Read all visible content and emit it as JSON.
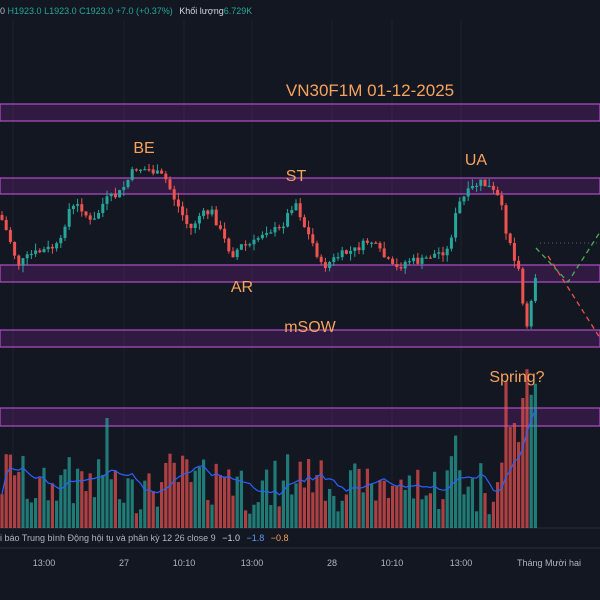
{
  "header": {
    "ohlc_prefix": "0",
    "high": "H1923.0",
    "low": "L1923.0",
    "close": "C1923.0",
    "change": "+7.0 (+0.37%)",
    "volume_label": "Khối lượng",
    "volume_value": "6.729K"
  },
  "oscillator": {
    "name": "i báo Trung bình Động hội tụ và phân kỳ",
    "params": "12 26 close 9",
    "v1": "−1.0",
    "v2": "−1.8",
    "v3": "−0.8"
  },
  "x_axis": {
    "ticks": [
      "13:00",
      "27",
      "10:10",
      "13:00",
      "28",
      "10:10",
      "13:00",
      "Tháng Mười hai"
    ]
  },
  "chart_data": {
    "type": "candlestick",
    "title": "VN30F1M 01-12-2025",
    "annotations": [
      "BE",
      "ST",
      "UA",
      "AR",
      "mSOW",
      "Spring?"
    ],
    "zones": [
      {
        "label": "upper resistance band",
        "color": "#9c27b0"
      },
      {
        "label": "UA/BE band",
        "color": "#9c27b0"
      },
      {
        "label": "AR support band",
        "color": "#9c27b0"
      },
      {
        "label": "mSOW band",
        "color": "#9c27b0"
      },
      {
        "label": "lower band",
        "color": "#9c27b0"
      }
    ],
    "colors": {
      "up": "#26a69a",
      "down": "#ef5350",
      "volume_ma": "#2962ff",
      "annotation": "#f7a35c",
      "zone": "#b04fc4"
    },
    "projection": {
      "up_color": "#4caf50",
      "down_color": "#ef5350"
    }
  }
}
